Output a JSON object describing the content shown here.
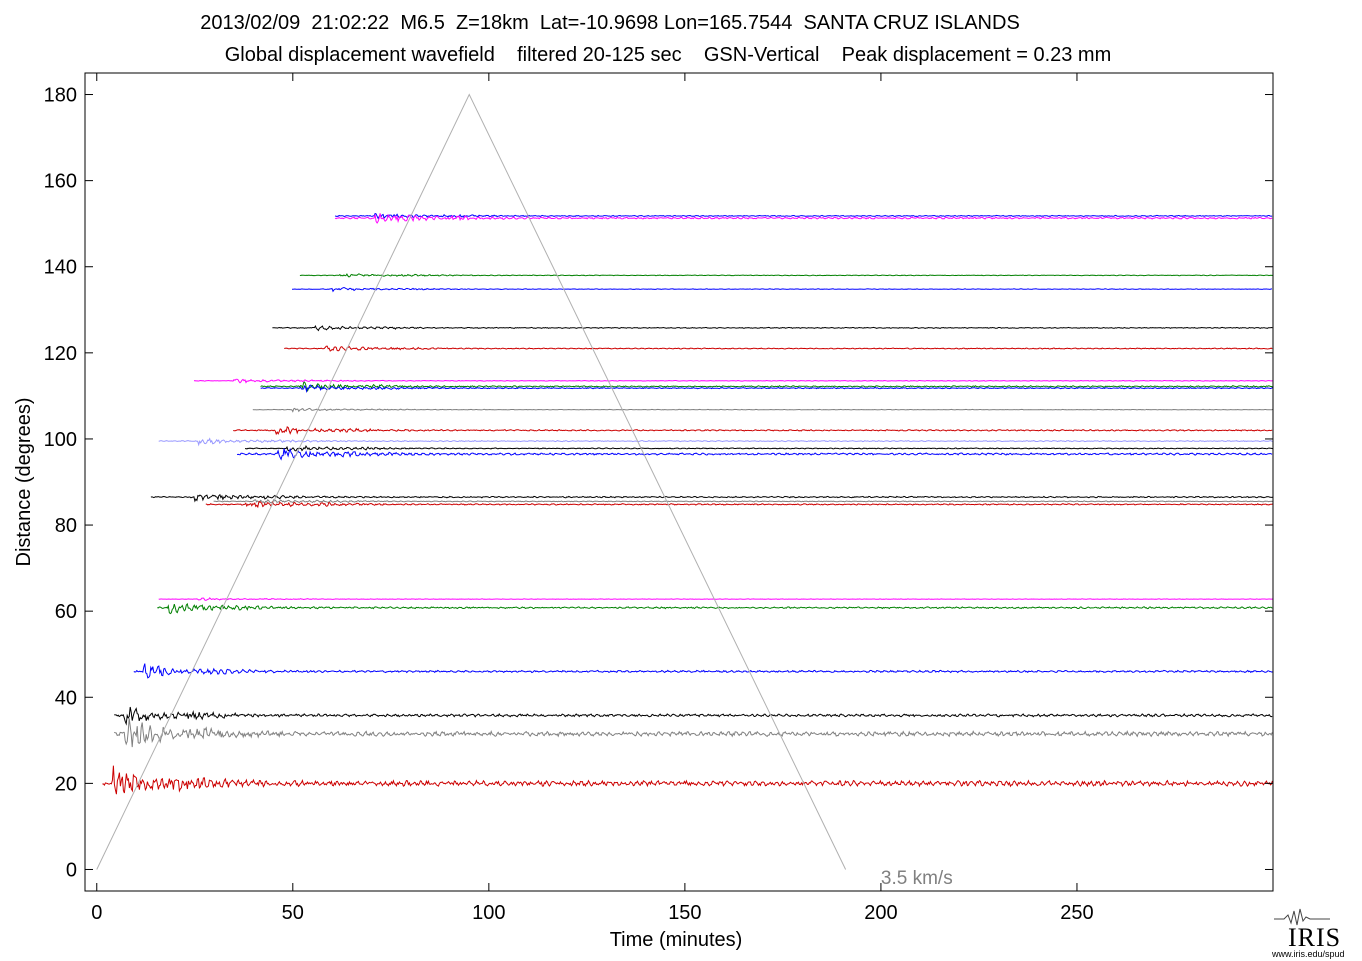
{
  "header": {
    "line1": "2013/02/09  21:02:22  M6.5  Z=18km  Lat=-10.9698 Lon=165.7544  SANTA CRUZ ISLANDS",
    "line2": "Global displacement wavefield    filtered 20-125 sec    GSN-Vertical    Peak displacement = 0.23 mm"
  },
  "logo": {
    "text": "IRIS",
    "url": "www.iris.edu/spud"
  },
  "chart_data": {
    "type": "line",
    "xlabel": "Time (minutes)",
    "ylabel": "Distance (degrees)",
    "xlim": [
      -3,
      300
    ],
    "ylim": [
      -5,
      185
    ],
    "x_ticks": [
      0,
      50,
      100,
      150,
      200,
      250
    ],
    "y_ticks": [
      0,
      20,
      40,
      60,
      80,
      100,
      120,
      140,
      160,
      180
    ],
    "grid": false,
    "annotations": [
      {
        "text": "3.5 km/s",
        "x": 200,
        "y": -2,
        "color": "#808080"
      }
    ],
    "reference_lines": [
      {
        "name": "3.5 km/s",
        "color": "#b0b0b0",
        "points": [
          [
            0,
            0
          ],
          [
            95,
            180
          ],
          [
            191,
            0
          ]
        ]
      }
    ],
    "series": [
      {
        "distance": 151.8,
        "color": "#0000ff",
        "onset": 71,
        "amplitude": 3.0
      },
      {
        "distance": 151.3,
        "color": "#ff00ff",
        "onset": 71,
        "amplitude": 5.0
      },
      {
        "distance": 138.0,
        "color": "#008000",
        "onset": 62,
        "amplitude": 2.0
      },
      {
        "distance": 134.8,
        "color": "#0000ff",
        "onset": 60,
        "amplitude": 1.8
      },
      {
        "distance": 125.8,
        "color": "#000000",
        "onset": 55,
        "amplitude": 2.5
      },
      {
        "distance": 121.0,
        "color": "#cc0000",
        "onset": 58,
        "amplitude": 3.0
      },
      {
        "distance": 113.5,
        "color": "#ff00ff",
        "onset": 35,
        "amplitude": 2.0
      },
      {
        "distance": 112.2,
        "color": "#008000",
        "onset": 52,
        "amplitude": 4.0
      },
      {
        "distance": 111.8,
        "color": "#0000ff",
        "onset": 52,
        "amplitude": 3.0
      },
      {
        "distance": 106.8,
        "color": "#808080",
        "onset": 50,
        "amplitude": 1.5
      },
      {
        "distance": 102.0,
        "color": "#cc0000",
        "onset": 45,
        "amplitude": 4.0
      },
      {
        "distance": 99.5,
        "color": "#9999ff",
        "onset": 26,
        "amplitude": 3.0
      },
      {
        "distance": 97.8,
        "color": "#000000",
        "onset": 48,
        "amplitude": 3.0
      },
      {
        "distance": 96.5,
        "color": "#0000ff",
        "onset": 46,
        "amplitude": 6.0
      },
      {
        "distance": 86.5,
        "color": "#000000",
        "onset": 24,
        "amplitude": 4.0
      },
      {
        "distance": 85.5,
        "color": "#808080",
        "onset": 40,
        "amplitude": 2.5
      },
      {
        "distance": 84.8,
        "color": "#cc0000",
        "onset": 38,
        "amplitude": 4.0
      },
      {
        "distance": 62.8,
        "color": "#ff00ff",
        "onset": 26,
        "amplitude": 1.2
      },
      {
        "distance": 60.8,
        "color": "#008000",
        "onset": 18,
        "amplitude": 5.0
      },
      {
        "distance": 46.0,
        "color": "#0000ff",
        "onset": 12,
        "amplitude": 6.0
      },
      {
        "distance": 35.8,
        "color": "#000000",
        "onset": 7,
        "amplitude": 8.0
      },
      {
        "distance": 31.5,
        "color": "#808080",
        "onset": 7,
        "amplitude": 14.0
      },
      {
        "distance": 20.0,
        "color": "#cc0000",
        "onset": 4,
        "amplitude": 16.0
      }
    ]
  }
}
